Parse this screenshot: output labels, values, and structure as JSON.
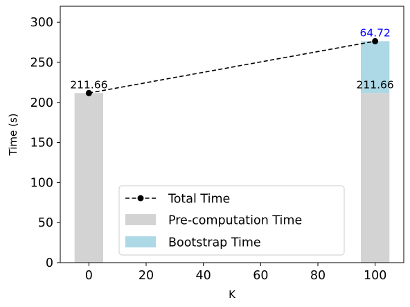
{
  "chart_data": {
    "type": "bar",
    "xlabel": "K",
    "ylabel": "Time (s)",
    "xlim": [
      -10,
      110
    ],
    "ylim": [
      0,
      320
    ],
    "x_ticks": [
      0,
      20,
      40,
      60,
      80,
      100
    ],
    "y_ticks": [
      0,
      50,
      100,
      150,
      200,
      250,
      300
    ],
    "categories": [
      0,
      100
    ],
    "bar_width": 10,
    "series": [
      {
        "name": "Pre-computation Time",
        "kind": "bar",
        "color": "#d3d3d3",
        "x": [
          0,
          100
        ],
        "values": [
          211.66,
          211.66
        ]
      },
      {
        "name": "Bootstrap Time",
        "kind": "bar",
        "stacked_on": "Pre-computation Time",
        "color": "#add8e6",
        "x": [
          100
        ],
        "values": [
          64.72
        ]
      },
      {
        "name": "Total Time",
        "kind": "line",
        "style": "dashed",
        "marker": "circle",
        "color": "#000000",
        "x": [
          0,
          100
        ],
        "values": [
          211.66,
          276.38
        ]
      }
    ],
    "data_labels": [
      {
        "text": "211.66",
        "x": 0,
        "y": 211.66,
        "color": "#000000"
      },
      {
        "text": "211.66",
        "x": 100,
        "y": 211.66,
        "color": "#000000"
      },
      {
        "text": "64.72",
        "x": 100,
        "y": 276.38,
        "color": "#0000ff"
      }
    ],
    "legend": {
      "placement": "lower-center",
      "entries": [
        "Total Time",
        "Pre-computation Time",
        "Bootstrap Time"
      ]
    },
    "grid": false
  }
}
